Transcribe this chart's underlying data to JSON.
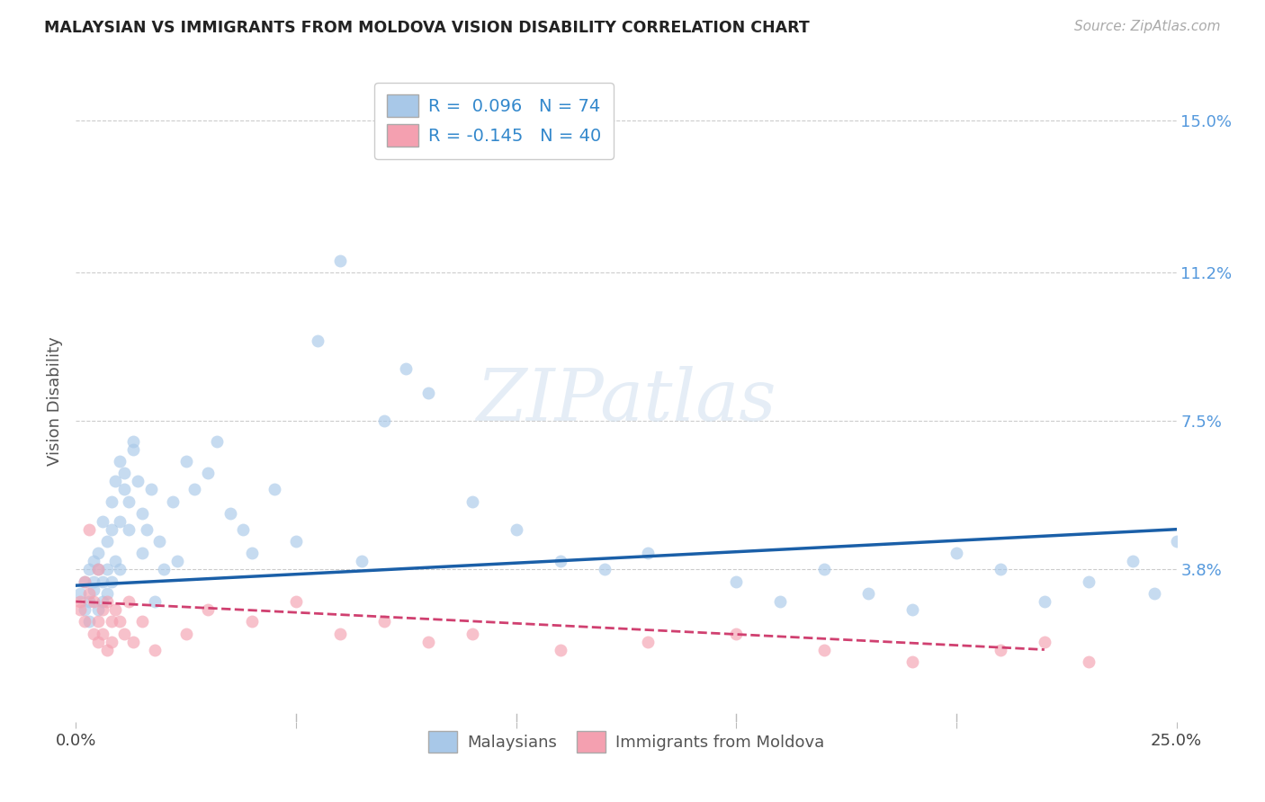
{
  "title": "MALAYSIAN VS IMMIGRANTS FROM MOLDOVA VISION DISABILITY CORRELATION CHART",
  "source": "Source: ZipAtlas.com",
  "ylabel": "Vision Disability",
  "xlim": [
    0.0,
    0.25
  ],
  "ylim": [
    0.0,
    0.16
  ],
  "xtick_positions": [
    0.0,
    0.05,
    0.1,
    0.15,
    0.2,
    0.25
  ],
  "xtick_labels": [
    "0.0%",
    "",
    "",
    "",
    "",
    "25.0%"
  ],
  "ytick_vals_right": [
    0.15,
    0.112,
    0.075,
    0.038
  ],
  "ytick_labels_right": [
    "15.0%",
    "11.2%",
    "7.5%",
    "3.8%"
  ],
  "legend_label1": "Malaysians",
  "legend_label2": "Immigrants from Moldova",
  "R1": 0.096,
  "N1": 74,
  "R2": -0.145,
  "N2": 40,
  "color_blue": "#a8c8e8",
  "color_pink": "#f4a0b0",
  "line_color_blue": "#1a5fa8",
  "line_color_pink": "#d04070",
  "background_color": "#ffffff",
  "grid_color": "#cccccc",
  "malaysians_x": [
    0.001,
    0.002,
    0.002,
    0.003,
    0.003,
    0.003,
    0.004,
    0.004,
    0.004,
    0.005,
    0.005,
    0.005,
    0.006,
    0.006,
    0.006,
    0.007,
    0.007,
    0.007,
    0.008,
    0.008,
    0.008,
    0.009,
    0.009,
    0.01,
    0.01,
    0.01,
    0.011,
    0.011,
    0.012,
    0.012,
    0.013,
    0.013,
    0.014,
    0.015,
    0.015,
    0.016,
    0.017,
    0.018,
    0.019,
    0.02,
    0.022,
    0.023,
    0.025,
    0.027,
    0.03,
    0.032,
    0.035,
    0.038,
    0.04,
    0.045,
    0.05,
    0.055,
    0.06,
    0.065,
    0.07,
    0.075,
    0.08,
    0.09,
    0.1,
    0.11,
    0.12,
    0.13,
    0.15,
    0.16,
    0.17,
    0.18,
    0.19,
    0.2,
    0.21,
    0.22,
    0.23,
    0.24,
    0.245,
    0.25
  ],
  "malaysians_y": [
    0.032,
    0.035,
    0.028,
    0.038,
    0.03,
    0.025,
    0.04,
    0.033,
    0.035,
    0.042,
    0.028,
    0.038,
    0.035,
    0.05,
    0.03,
    0.045,
    0.038,
    0.032,
    0.055,
    0.048,
    0.035,
    0.06,
    0.04,
    0.065,
    0.05,
    0.038,
    0.058,
    0.062,
    0.048,
    0.055,
    0.07,
    0.068,
    0.06,
    0.052,
    0.042,
    0.048,
    0.058,
    0.03,
    0.045,
    0.038,
    0.055,
    0.04,
    0.065,
    0.058,
    0.062,
    0.07,
    0.052,
    0.048,
    0.042,
    0.058,
    0.045,
    0.095,
    0.115,
    0.04,
    0.075,
    0.088,
    0.082,
    0.055,
    0.048,
    0.04,
    0.038,
    0.042,
    0.035,
    0.03,
    0.038,
    0.032,
    0.028,
    0.042,
    0.038,
    0.03,
    0.035,
    0.04,
    0.032,
    0.045
  ],
  "moldova_x": [
    0.001,
    0.001,
    0.002,
    0.002,
    0.003,
    0.003,
    0.004,
    0.004,
    0.005,
    0.005,
    0.005,
    0.006,
    0.006,
    0.007,
    0.007,
    0.008,
    0.008,
    0.009,
    0.01,
    0.011,
    0.012,
    0.013,
    0.015,
    0.018,
    0.025,
    0.03,
    0.04,
    0.05,
    0.06,
    0.07,
    0.08,
    0.09,
    0.11,
    0.13,
    0.15,
    0.17,
    0.19,
    0.21,
    0.22,
    0.23
  ],
  "moldova_y": [
    0.03,
    0.028,
    0.035,
    0.025,
    0.032,
    0.048,
    0.03,
    0.022,
    0.038,
    0.025,
    0.02,
    0.028,
    0.022,
    0.03,
    0.018,
    0.025,
    0.02,
    0.028,
    0.025,
    0.022,
    0.03,
    0.02,
    0.025,
    0.018,
    0.022,
    0.028,
    0.025,
    0.03,
    0.022,
    0.025,
    0.02,
    0.022,
    0.018,
    0.02,
    0.022,
    0.018,
    0.015,
    0.018,
    0.02,
    0.015
  ],
  "blue_line_x": [
    0.0,
    0.25
  ],
  "blue_line_y_start": 0.034,
  "blue_line_y_end": 0.048,
  "pink_line_x": [
    0.0,
    0.22
  ],
  "pink_line_y_start": 0.03,
  "pink_line_y_end": 0.018
}
